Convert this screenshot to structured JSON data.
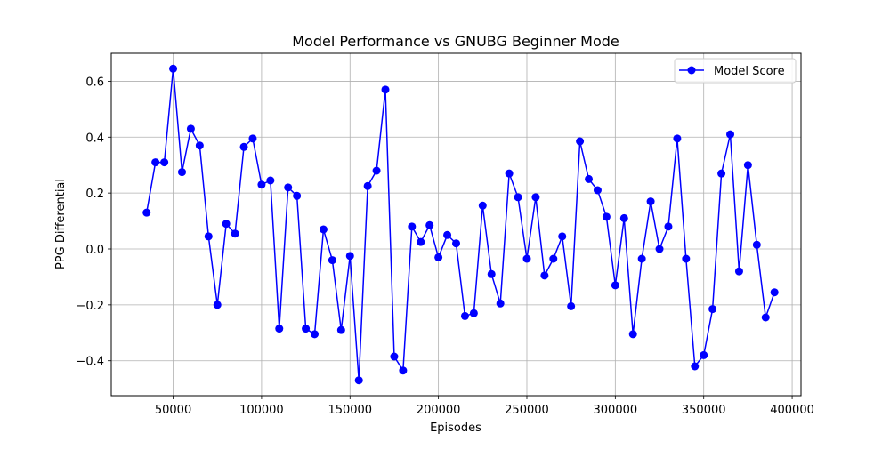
{
  "chart_data": {
    "type": "line",
    "title": "Model Performance vs GNUBG Beginner Mode",
    "xlabel": "Episodes",
    "ylabel": "PPG Differential",
    "xlim": [
      15000,
      405000
    ],
    "ylim": [
      -0.525,
      0.7
    ],
    "xticks": [
      50000,
      100000,
      150000,
      200000,
      250000,
      300000,
      350000,
      400000
    ],
    "xtick_labels": [
      "50000",
      "100000",
      "150000",
      "200000",
      "250000",
      "300000",
      "350000",
      "400000"
    ],
    "yticks": [
      -0.4,
      -0.2,
      0.0,
      0.2,
      0.4,
      0.6
    ],
    "ytick_labels": [
      "−0.4",
      "−0.2",
      "0.0",
      "0.2",
      "0.4",
      "0.6"
    ],
    "grid": true,
    "legend_position": "top-right",
    "colors": {
      "series": "#0000ff",
      "grid": "#b0b0b0",
      "axis": "#000000"
    },
    "series": [
      {
        "name": "Model Score",
        "marker": "circle",
        "x": [
          35000,
          40000,
          45000,
          50000,
          55000,
          60000,
          65000,
          70000,
          75000,
          80000,
          85000,
          90000,
          95000,
          100000,
          105000,
          110000,
          115000,
          120000,
          125000,
          130000,
          135000,
          140000,
          145000,
          150000,
          155000,
          160000,
          165000,
          170000,
          175000,
          180000,
          185000,
          190000,
          195000,
          200000,
          205000,
          210000,
          215000,
          220000,
          225000,
          230000,
          235000,
          240000,
          245000,
          250000,
          255000,
          260000,
          265000,
          270000,
          275000,
          280000,
          285000,
          290000,
          295000,
          300000,
          305000,
          310000,
          315000,
          320000,
          325000,
          330000,
          335000,
          340000,
          345000,
          350000,
          355000,
          360000,
          365000,
          370000,
          375000,
          380000,
          385000,
          390000
        ],
        "values": [
          0.13,
          0.31,
          0.31,
          0.645,
          0.275,
          0.43,
          0.37,
          0.045,
          -0.2,
          0.09,
          0.055,
          0.365,
          0.395,
          0.23,
          0.245,
          -0.285,
          0.22,
          0.19,
          -0.285,
          -0.305,
          0.07,
          -0.04,
          -0.29,
          -0.025,
          -0.47,
          0.225,
          0.28,
          0.57,
          -0.385,
          -0.435,
          0.08,
          0.025,
          0.085,
          -0.03,
          0.05,
          0.02,
          -0.24,
          -0.23,
          0.155,
          -0.09,
          -0.195,
          0.27,
          0.185,
          -0.035,
          0.185,
          -0.095,
          -0.035,
          0.045,
          -0.205,
          0.385,
          0.25,
          0.21,
          0.115,
          -0.13,
          0.11,
          -0.305,
          -0.035,
          0.17,
          0.0,
          0.08,
          0.395,
          -0.035,
          -0.42,
          -0.38,
          -0.215,
          0.27,
          0.41,
          -0.08,
          0.3,
          0.015,
          -0.245,
          -0.155
        ]
      }
    ]
  }
}
